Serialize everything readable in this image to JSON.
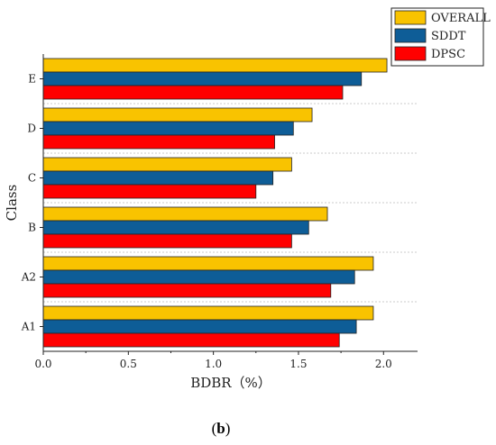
{
  "caption": {
    "open": "(",
    "letter": "b",
    "close": ")"
  },
  "chart_data": {
    "type": "bar",
    "orientation": "horizontal",
    "categories": [
      "A1",
      "A2",
      "B",
      "C",
      "D",
      "E"
    ],
    "series": [
      {
        "name": "OVERALL",
        "color": "#f9c300",
        "values": [
          1.94,
          1.94,
          1.67,
          1.46,
          1.58,
          2.02
        ]
      },
      {
        "name": "SDDT",
        "color": "#0e5d97",
        "values": [
          1.84,
          1.83,
          1.56,
          1.35,
          1.47,
          1.87
        ]
      },
      {
        "name": "DPSC",
        "color": "#ff0000",
        "values": [
          1.74,
          1.69,
          1.46,
          1.25,
          1.36,
          1.76
        ]
      }
    ],
    "xlabel": "BDBR（%）",
    "ylabel": "Class",
    "xlim": [
      0.0,
      2.2
    ],
    "xticks": [
      "0.0",
      "0.5",
      "1.0",
      "1.5",
      "2.0"
    ],
    "grid": "dotted separators between categories",
    "legend": "top-right"
  }
}
